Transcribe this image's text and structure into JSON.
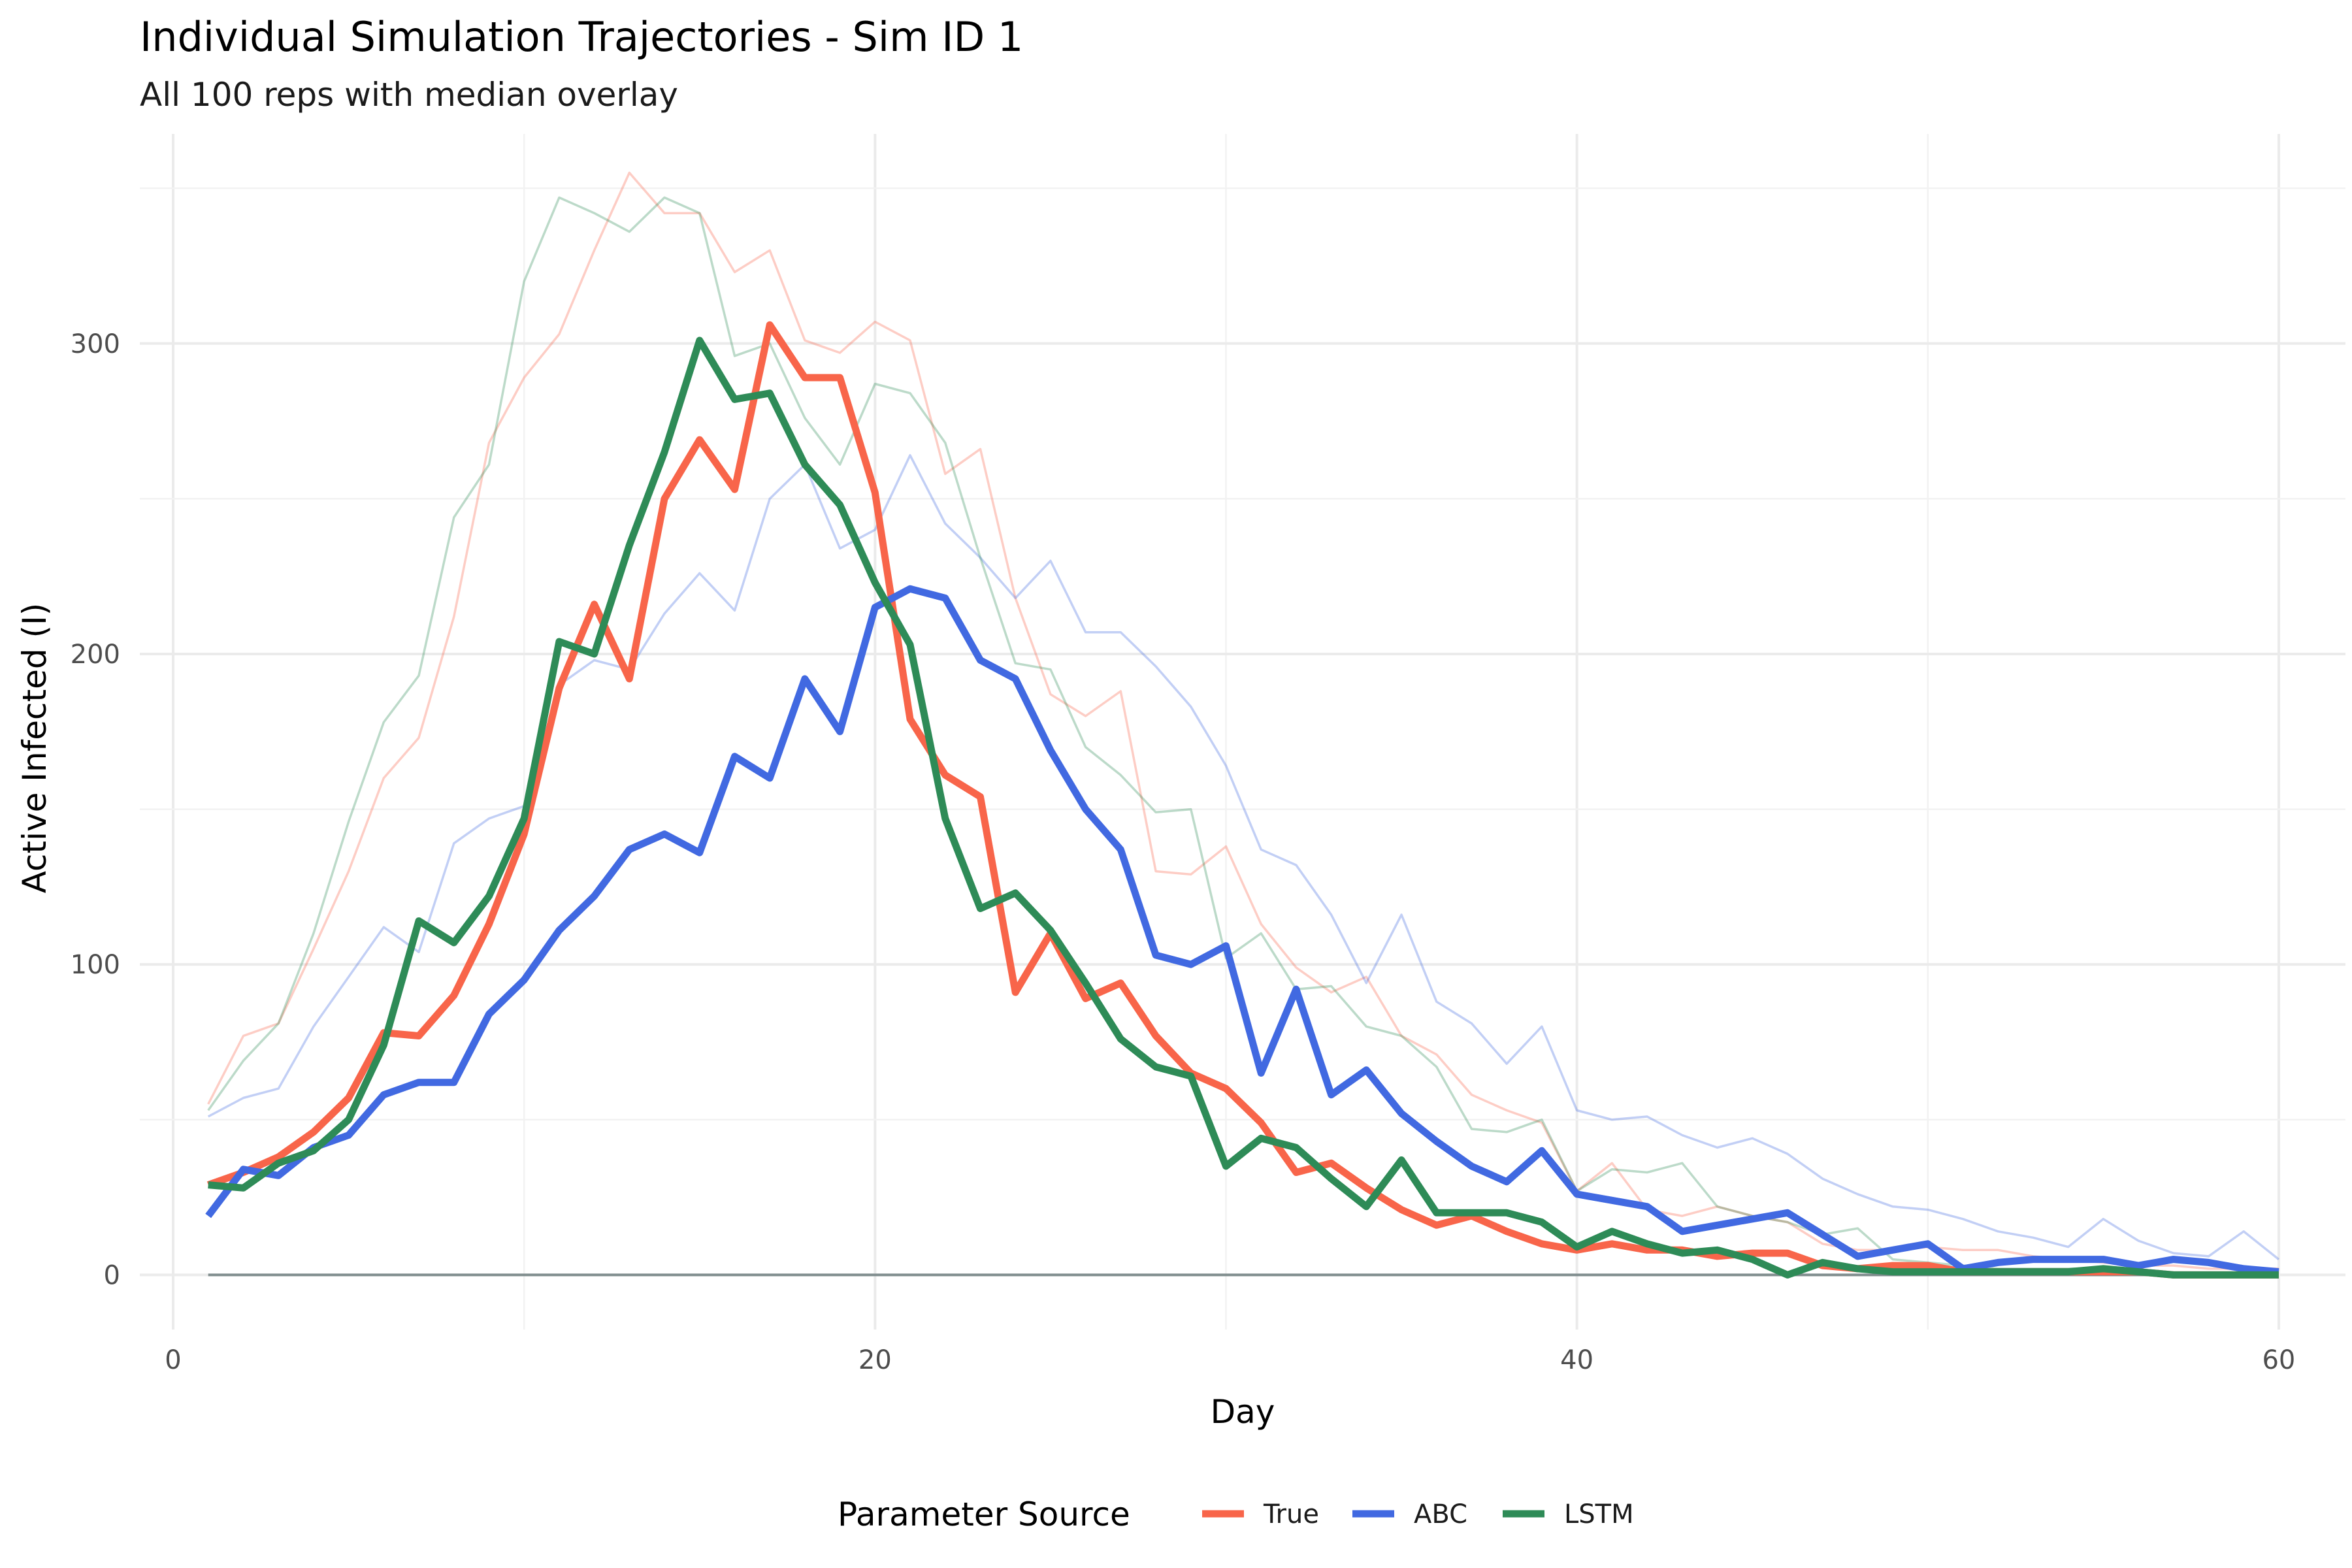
{
  "chart_data": {
    "type": "line",
    "title": "Individual Simulation Trajectories - Sim ID 1",
    "subtitle": "All 100 reps with median overlay",
    "xlabel": "Day",
    "ylabel": "Active Infected (I)",
    "xlim": [
      -0.95,
      61.9
    ],
    "ylim": [
      -17.6,
      367.5
    ],
    "x_ticks": [
      0,
      20,
      40,
      60
    ],
    "y_ticks": [
      0,
      100,
      200,
      300
    ],
    "grid": true,
    "legend": {
      "title": "Parameter Source",
      "position": "bottom"
    },
    "colors": {
      "True": "#f8654a",
      "ABC": "#4169e1",
      "LSTM": "#2e8b57",
      "baseline": "#7f8c8d"
    },
    "x": [
      1,
      2,
      3,
      4,
      5,
      6,
      7,
      8,
      9,
      10,
      11,
      12,
      13,
      14,
      15,
      16,
      17,
      18,
      19,
      20,
      21,
      22,
      23,
      24,
      25,
      26,
      27,
      28,
      29,
      30,
      31,
      32,
      33,
      34,
      35,
      36,
      37,
      38,
      39,
      40,
      41,
      42,
      43,
      44,
      45,
      46,
      47,
      48,
      49,
      50,
      51,
      52,
      53,
      54,
      55,
      56,
      57,
      58,
      59,
      60
    ],
    "series": [
      {
        "name": "True",
        "role": "median",
        "values": [
          29,
          33,
          38,
          46,
          57,
          78,
          77,
          90,
          113,
          142,
          189,
          216,
          192,
          250,
          269,
          253,
          306,
          289,
          289,
          252,
          179,
          161,
          154,
          91,
          110,
          89,
          94,
          77,
          65,
          60,
          49,
          33,
          36,
          28,
          21,
          16,
          19,
          14,
          10,
          8,
          10,
          8,
          8,
          6,
          7,
          7,
          3,
          2,
          3,
          3,
          1,
          1,
          1,
          1,
          1,
          1,
          0,
          0,
          0,
          0
        ]
      },
      {
        "name": "ABC",
        "role": "median",
        "values": [
          19,
          34,
          32,
          41,
          45,
          58,
          62,
          62,
          84,
          95,
          111,
          122,
          137,
          142,
          136,
          167,
          160,
          192,
          175,
          215,
          221,
          218,
          198,
          192,
          169,
          150,
          137,
          103,
          100,
          106,
          65,
          92,
          58,
          66,
          52,
          43,
          35,
          30,
          40,
          26,
          24,
          22,
          14,
          16,
          18,
          20,
          13,
          6,
          8,
          10,
          2,
          4,
          5,
          5,
          5,
          3,
          5,
          4,
          2,
          1
        ]
      },
      {
        "name": "LSTM",
        "role": "median",
        "values": [
          29,
          28,
          36,
          40,
          50,
          74,
          114,
          107,
          122,
          147,
          204,
          200,
          235,
          265,
          301,
          282,
          284,
          261,
          248,
          223,
          203,
          147,
          118,
          123,
          111,
          94,
          76,
          67,
          64,
          35,
          44,
          41,
          31,
          22,
          37,
          20,
          20,
          20,
          17,
          9,
          14,
          10,
          7,
          8,
          5,
          0,
          4,
          2,
          1,
          1,
          1,
          1,
          1,
          1,
          2,
          1,
          0,
          0,
          0,
          0
        ]
      },
      {
        "name": "True",
        "role": "rep",
        "values": [
          55,
          77,
          81,
          105,
          130,
          160,
          173,
          212,
          268,
          289,
          303,
          330,
          355,
          342,
          342,
          323,
          330,
          301,
          297,
          307,
          301,
          258,
          266,
          218,
          187,
          180,
          188,
          130,
          129,
          138,
          113,
          99,
          91,
          96,
          77,
          71,
          58,
          53,
          49,
          27,
          36,
          21,
          19,
          22,
          19,
          17,
          10,
          8,
          8,
          9,
          8,
          8,
          6,
          5,
          4,
          3,
          3,
          2,
          2,
          2
        ]
      },
      {
        "name": "ABC",
        "role": "rep",
        "values": [
          51,
          57,
          60,
          80,
          96,
          112,
          104,
          139,
          147,
          151,
          190,
          198,
          195,
          213,
          226,
          214,
          250,
          261,
          234,
          240,
          264,
          242,
          231,
          218,
          230,
          207,
          207,
          196,
          183,
          164,
          137,
          132,
          116,
          94,
          116,
          88,
          81,
          68,
          80,
          53,
          50,
          51,
          45,
          41,
          44,
          39,
          31,
          26,
          22,
          21,
          18,
          14,
          12,
          9,
          18,
          11,
          7,
          6,
          14,
          5
        ]
      },
      {
        "name": "LSTM",
        "role": "rep",
        "values": [
          53,
          69,
          81,
          110,
          146,
          178,
          193,
          244,
          261,
          320,
          347,
          342,
          336,
          347,
          342,
          296,
          300,
          276,
          261,
          287,
          284,
          268,
          231,
          197,
          195,
          170,
          161,
          149,
          150,
          102,
          110,
          92,
          93,
          80,
          77,
          67,
          47,
          46,
          50,
          27,
          34,
          33,
          36,
          22,
          19,
          17,
          13,
          15,
          5,
          4,
          3,
          2,
          2,
          2,
          2,
          1,
          0,
          0,
          0,
          0
        ]
      },
      {
        "name": "",
        "role": "baseline",
        "values": [
          0,
          0,
          0,
          0,
          0,
          0,
          0,
          0,
          0,
          0,
          0,
          0,
          0,
          0,
          0,
          0,
          0,
          0,
          0,
          0,
          0,
          0,
          0,
          0,
          0,
          0,
          0,
          0,
          0,
          0,
          0,
          0,
          0,
          0,
          0,
          0,
          0,
          0,
          0,
          0,
          0,
          0,
          0,
          0,
          0,
          0,
          0,
          0,
          0,
          0,
          0,
          0,
          0,
          0,
          0,
          0,
          0,
          0,
          0,
          0
        ]
      }
    ]
  }
}
